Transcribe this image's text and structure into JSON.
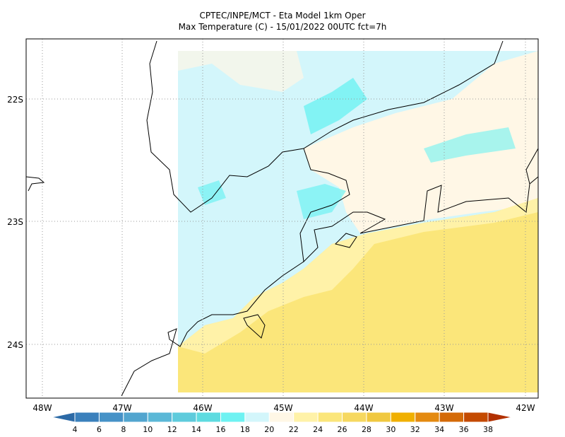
{
  "header": {
    "title": "CPTEC/INPE/MCT -  Eta Model 1km Oper",
    "subtitle": "Max Temperature (C) - 15/01/2022 00UTC fct=7h"
  },
  "map": {
    "lat_labels": [
      "22S",
      "23S",
      "24S"
    ],
    "lon_labels": [
      "48W",
      "47W",
      "46W",
      "45W",
      "44W",
      "43W",
      "42W"
    ]
  },
  "colorbar": {
    "labels": [
      4,
      6,
      8,
      10,
      12,
      14,
      16,
      18,
      20,
      22,
      24,
      26,
      28,
      30,
      32,
      34,
      36,
      38
    ],
    "colors": [
      "#2c6aa6",
      "#3a80bc",
      "#4692c7",
      "#52a5cf",
      "#5bb8d7",
      "#5ecbdc",
      "#5edbe0",
      "#6ef2f2",
      "#d3f6fb",
      "#fff7e6",
      "#fff2a8",
      "#fbe67a",
      "#f6d860",
      "#f0c840",
      "#f0b000",
      "#e48a10",
      "#d46a08",
      "#c44a00",
      "#b23000"
    ]
  }
}
